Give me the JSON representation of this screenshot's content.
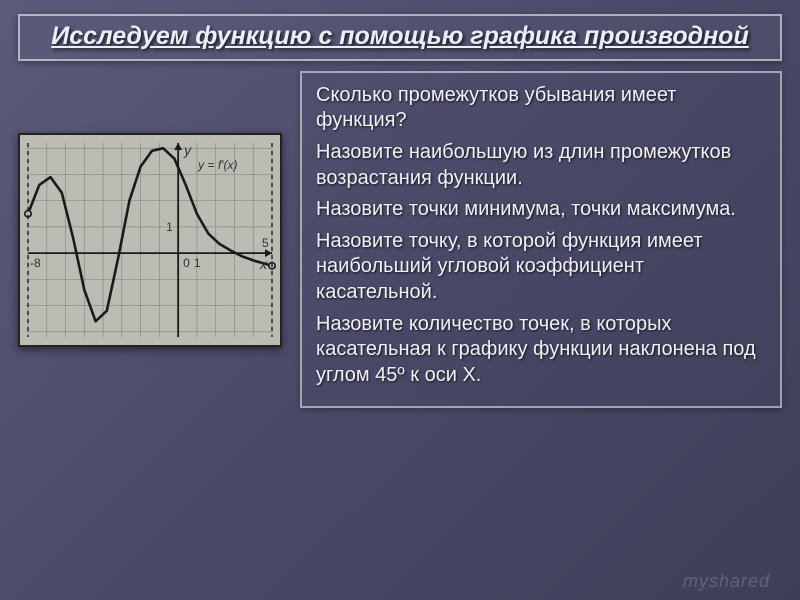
{
  "title": "Исследуем функцию с помощью графика производной",
  "questions": [
    "Сколько промежутков убывания имеет функция?",
    "Назовите наибольшую из длин промежутков возрастания функции.",
    "Назовите точки минимума, точки максимума.",
    "Назовите точку, в которой функция имеет наибольший угловой коэффициент касательной.",
    "Назовите количество точек, в которых касательная к графику функции наклонена под углом 45º к оси Х."
  ],
  "watermark": "myshared",
  "graph": {
    "type": "line",
    "label": "y = f'(x)",
    "background_color": "#bcbcb4",
    "grid_color": "#8a8a82",
    "axis_color": "#1a1a1a",
    "curve_color": "#1a1a1a",
    "curve_width": 2.6,
    "xlim": [
      -8,
      5
    ],
    "ylim": [
      -3.2,
      4.2
    ],
    "x_tick_step": 1,
    "y_tick_step": 1,
    "x_labels_shown": [
      -8,
      0,
      1,
      5
    ],
    "y_labels_shown": [
      1
    ],
    "label_fontsize": 12,
    "label_color": "#303030",
    "axis_label_y": "y",
    "axis_label_x": "x",
    "endpoints_open": true,
    "endpoint_marker_radius": 3.2,
    "points": [
      [
        -8,
        1.5
      ],
      [
        -7.4,
        2.6
      ],
      [
        -6.8,
        2.9
      ],
      [
        -6.2,
        2.3
      ],
      [
        -5.6,
        0.6
      ],
      [
        -5.0,
        -1.4
      ],
      [
        -4.4,
        -2.6
      ],
      [
        -3.8,
        -2.2
      ],
      [
        -3.2,
        -0.2
      ],
      [
        -2.6,
        2.0
      ],
      [
        -2.0,
        3.3
      ],
      [
        -1.4,
        3.9
      ],
      [
        -0.8,
        4.0
      ],
      [
        -0.2,
        3.6
      ],
      [
        0.4,
        2.6
      ],
      [
        1.0,
        1.5
      ],
      [
        1.6,
        0.75
      ],
      [
        2.2,
        0.35
      ],
      [
        2.8,
        0.1
      ],
      [
        3.4,
        -0.12
      ],
      [
        4.0,
        -0.28
      ],
      [
        4.6,
        -0.4
      ],
      [
        5.0,
        -0.48
      ]
    ]
  }
}
